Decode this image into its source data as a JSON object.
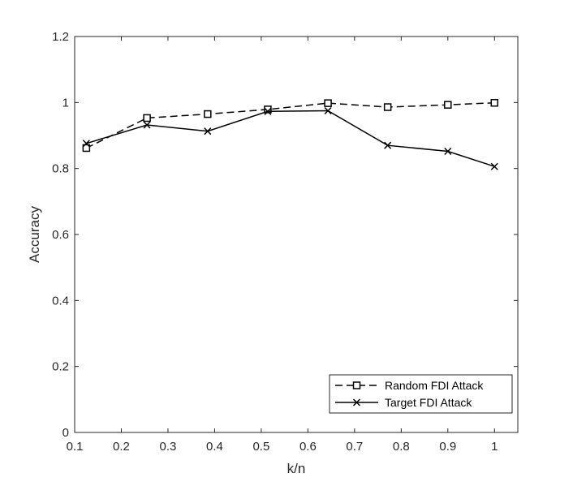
{
  "chart_data": {
    "type": "line",
    "xlabel": "k/n",
    "ylabel": "Accuracy",
    "xlim": [
      0.1,
      1.05
    ],
    "ylim": [
      0,
      1.2
    ],
    "x_ticks": [
      "0.1",
      "0.2",
      "0.3",
      "0.4",
      "0.5",
      "0.6",
      "0.7",
      "0.8",
      "0.9",
      "1"
    ],
    "y_ticks": [
      "0",
      "0.2",
      "0.4",
      "0.6",
      "0.8",
      "1",
      "1.2"
    ],
    "x_tick_values": [
      0.1,
      0.2,
      0.3,
      0.4,
      0.5,
      0.6,
      0.7,
      0.8,
      0.9,
      1.0
    ],
    "y_tick_values": [
      0,
      0.2,
      0.4,
      0.6,
      0.8,
      1.0,
      1.2
    ],
    "grid": false,
    "legend_position": "bottom-right",
    "x": [
      0.125,
      0.255,
      0.385,
      0.514,
      0.643,
      0.771,
      0.9,
      1.0
    ],
    "series": [
      {
        "name": "Random FDI Attack",
        "values": [
          0.862,
          0.953,
          0.965,
          0.979,
          0.998,
          0.986,
          0.993,
          0.999
        ],
        "line_style": "dashed",
        "marker": "square",
        "color": "#000000"
      },
      {
        "name": "Target FDI Attack",
        "values": [
          0.876,
          0.932,
          0.913,
          0.973,
          0.975,
          0.87,
          0.852,
          0.806
        ],
        "line_style": "solid",
        "marker": "x",
        "color": "#000000"
      }
    ]
  }
}
